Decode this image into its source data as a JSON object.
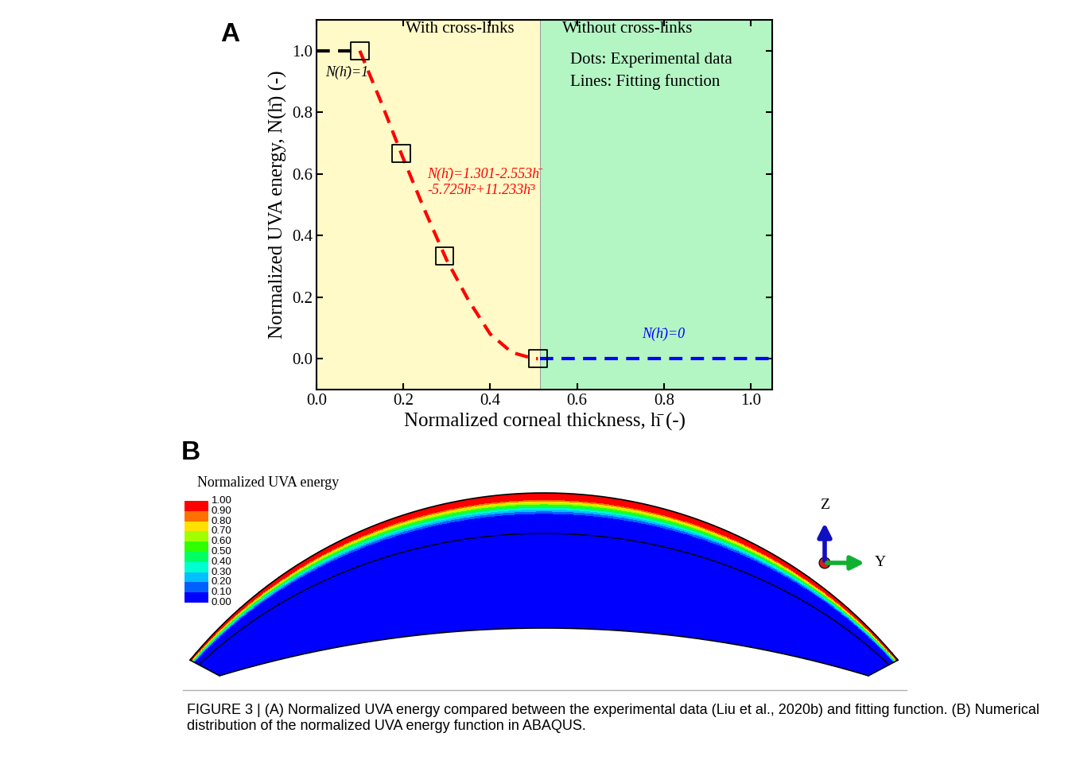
{
  "chart_data": [
    {
      "type": "line",
      "panel_label": "A",
      "x_label": "Normalized corneal thickness, h̄ (-)",
      "y_label": "Normalized UVA energy, N(h̄) (-)",
      "xlim": [
        0.0,
        1.05
      ],
      "ylim": [
        -0.1,
        1.1
      ],
      "xticks": [
        0.0,
        0.2,
        0.4,
        0.6,
        0.8,
        1.0
      ],
      "yticks": [
        0.0,
        0.2,
        0.4,
        0.6,
        0.8,
        1.0
      ],
      "regions": [
        {
          "label": "With cross-links",
          "from": 0.0,
          "to": 0.515,
          "color": "#fffac8"
        },
        {
          "label": "Without cross-links",
          "from": 0.515,
          "to": 1.05,
          "color": "#b4f5c4"
        }
      ],
      "annotations": [
        "Dots: Experimental data",
        "Lines: Fitting function"
      ],
      "series": [
        {
          "type": "scatter",
          "marker": "square",
          "color": "#000000",
          "x": [
            0.1,
            0.195,
            0.295,
            0.51
          ],
          "values": [
            1.0,
            0.667,
            0.333,
            0.0
          ]
        },
        {
          "type": "line",
          "line_style": "dashed",
          "color": "#000000",
          "label": "N(h̄)=1",
          "x": [
            0.0,
            0.1
          ],
          "values": [
            1.0,
            1.0
          ]
        },
        {
          "type": "line",
          "line_style": "dashed",
          "color": "#ff0000",
          "label": "N(h̄)=1.301-2.553h̄\n-5.725h̄²+11.233h̄³",
          "x": [
            0.1,
            0.15,
            0.2,
            0.25,
            0.3,
            0.35,
            0.4,
            0.45,
            0.5,
            0.51
          ],
          "values": [
            1.0,
            0.83,
            0.65,
            0.48,
            0.32,
            0.19,
            0.08,
            0.02,
            0.0,
            0.0
          ]
        },
        {
          "type": "line",
          "line_style": "dashed",
          "color": "#0000ff",
          "label": "N(h̄)=0",
          "x": [
            0.515,
            1.05
          ],
          "values": [
            0.0,
            0.0
          ]
        }
      ]
    },
    {
      "type": "contour",
      "panel_label": "B",
      "colorbar": {
        "title": "Normalized UVA energy",
        "range": [
          0.0,
          1.0
        ],
        "ticks": [
          {
            "value": 1.0,
            "label": "1.00"
          },
          {
            "value": 0.9,
            "label": "0.90"
          },
          {
            "value": 0.8,
            "label": "0.80"
          },
          {
            "value": 0.7,
            "label": "0.70"
          },
          {
            "value": 0.6,
            "label": "0.60"
          },
          {
            "value": 0.5,
            "label": "0.50"
          },
          {
            "value": 0.4,
            "label": "0.40"
          },
          {
            "value": 0.3,
            "label": "0.30"
          },
          {
            "value": 0.2,
            "label": "0.20"
          },
          {
            "value": 0.1,
            "label": "0.10"
          },
          {
            "value": 0.0,
            "label": "0.00"
          }
        ],
        "colors": [
          "#0000ff",
          "#0060ff",
          "#00c0ff",
          "#00ffd0",
          "#00ff60",
          "#30ff00",
          "#a0ff00",
          "#ffe000",
          "#ff7000",
          "#ff0000"
        ]
      },
      "axes_triad": {
        "vertical": "Z",
        "horizontal": "Y"
      }
    }
  ],
  "caption": "FIGURE 3 | (A) Normalized UVA energy compared between the experimental data (Liu et al., 2020b) and fitting function. (B) Numerical distribution of the normalized UVA energy function in ABAQUS."
}
